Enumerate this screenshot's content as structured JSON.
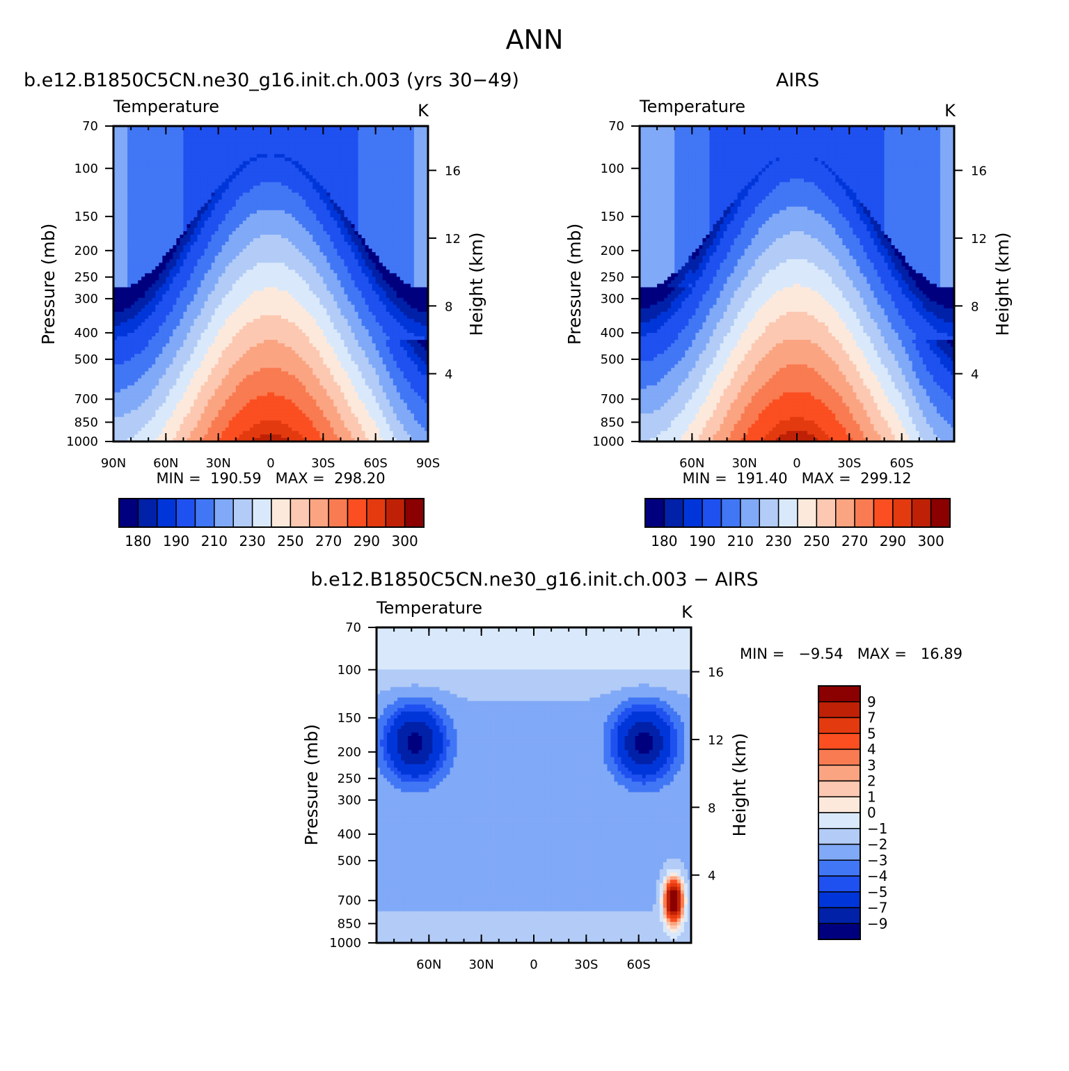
{
  "page_title": "ANN",
  "colors": {
    "temp_levels": [
      "#00007f",
      "#0021a8",
      "#0036d9",
      "#1f50f0",
      "#4177f5",
      "#80a9f7",
      "#b2ccf7",
      "#d9e9fb",
      "#fde9db",
      "#fcc8b1",
      "#fba482",
      "#f97b51",
      "#fb4f21",
      "#e33a0f",
      "#bf2106",
      "#8b0000"
    ],
    "diff_levels": [
      "#00007f",
      "#0021a8",
      "#0036d9",
      "#1f50f0",
      "#4177f5",
      "#80a9f7",
      "#b2ccf7",
      "#d9e9fb",
      "#fde9db",
      "#fcc8b1",
      "#fba482",
      "#f97b51",
      "#fb4f21",
      "#e33a0f",
      "#bf2106",
      "#8b0000"
    ]
  },
  "chart_data": [
    {
      "type": "heatmap",
      "title": "b.e12.B1850C5CN.ne30_g16.init.ch.003 (yrs 30−49)",
      "variable_label": "Temperature",
      "units": "K",
      "ylabel": "Pressure (mb)",
      "y2label": "Height (km)",
      "x_ticks": [
        "90N",
        "60N",
        "30N",
        "0",
        "30S",
        "60S",
        "90S"
      ],
      "y_ticks": [
        "70",
        "100",
        "150",
        "200",
        "250",
        "300",
        "400",
        "500",
        "700",
        "850",
        "1000"
      ],
      "y2_ticks": [
        "16",
        "12",
        "8",
        "4"
      ],
      "stats": "MIN =  190.59   MAX =  298.20",
      "colorbar_labels": [
        "180",
        "190",
        "210",
        "230",
        "250",
        "270",
        "290",
        "300"
      ],
      "min": 190.59,
      "max": 298.2
    },
    {
      "type": "heatmap",
      "title": "AIRS",
      "variable_label": "Temperature",
      "units": "K",
      "ylabel": "Pressure (mb)",
      "y2label": "Height (km)",
      "x_ticks": [
        "60N",
        "30N",
        "0",
        "30S",
        "60S"
      ],
      "y_ticks": [
        "70",
        "100",
        "150",
        "200",
        "250",
        "300",
        "400",
        "500",
        "700",
        "850",
        "1000"
      ],
      "y2_ticks": [
        "16",
        "12",
        "8",
        "4"
      ],
      "stats": "MIN =  191.40   MAX =  299.12",
      "colorbar_labels": [
        "180",
        "190",
        "210",
        "230",
        "250",
        "270",
        "290",
        "300"
      ],
      "min": 191.4,
      "max": 299.12
    },
    {
      "type": "heatmap",
      "title": "b.e12.B1850C5CN.ne30_g16.init.ch.003 − AIRS",
      "variable_label": "Temperature",
      "units": "K",
      "ylabel": "Pressure (mb)",
      "y2label": "Height (km)",
      "x_ticks": [
        "60N",
        "30N",
        "0",
        "30S",
        "60S"
      ],
      "y_ticks": [
        "70",
        "100",
        "150",
        "200",
        "250",
        "300",
        "400",
        "500",
        "700",
        "850",
        "1000"
      ],
      "y2_ticks": [
        "16",
        "12",
        "8",
        "4"
      ],
      "stats": "MIN =   −9.54   MAX =   16.89",
      "colorbar_labels": [
        "9",
        "7",
        "5",
        "4",
        "3",
        "2",
        "1",
        "0",
        "−1",
        "−2",
        "−3",
        "−4",
        "−5",
        "−7",
        "−9"
      ],
      "min": -9.54,
      "max": 16.89
    }
  ]
}
